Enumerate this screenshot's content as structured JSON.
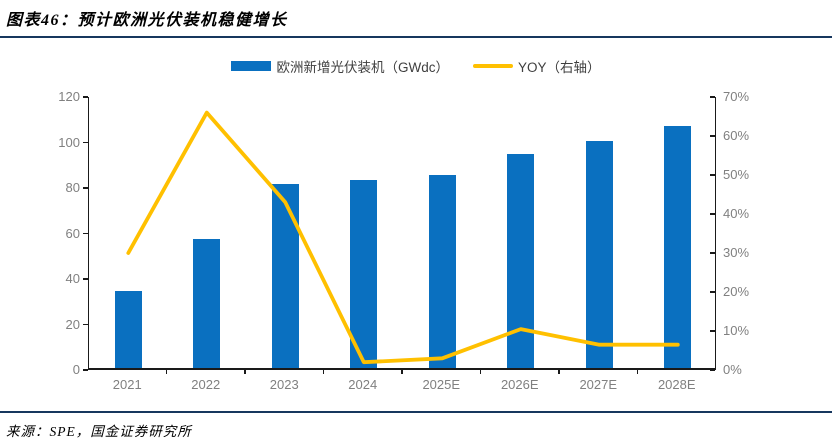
{
  "header": {
    "title": "图表46：预计欧洲光伏装机稳健增长"
  },
  "footer": {
    "source": "来源：SPE，国金证券研究所"
  },
  "colors": {
    "bar": "#0A70C0",
    "line": "#FFC000",
    "rule": "#17375E",
    "axis": "#1a1a1a",
    "axis_label": "#808080"
  },
  "legend": [
    {
      "label": "欧洲新增光伏装机（GWdc）",
      "type": "bar",
      "color": "#0A70C0"
    },
    {
      "label": "YOY（右轴）",
      "type": "line",
      "color": "#FFC000"
    }
  ],
  "chart_data": {
    "type": "bar",
    "title": "图表46：预计欧洲光伏装机稳健增长",
    "categories": [
      "2021",
      "2022",
      "2023",
      "2024",
      "2025E",
      "2026E",
      "2027E",
      "2028E"
    ],
    "series": [
      {
        "name": "欧洲新增光伏装机（GWdc）",
        "type": "bar",
        "axis": "left",
        "color": "#0A70C0",
        "values": [
          34,
          56.5,
          81,
          82.5,
          85,
          94,
          100,
          106.5
        ]
      },
      {
        "name": "YOY（右轴）",
        "type": "line",
        "axis": "right",
        "color": "#FFC000",
        "values_pct": [
          30,
          66,
          43,
          2,
          3,
          10.5,
          6.5,
          6.5
        ]
      }
    ],
    "left_axis": {
      "label": "",
      "min": 0,
      "max": 120,
      "step": 20,
      "ticks": [
        "0",
        "20",
        "40",
        "60",
        "80",
        "100",
        "120"
      ]
    },
    "right_axis": {
      "label": "",
      "min": 0,
      "max": 70,
      "step": 10,
      "ticks": [
        "0%",
        "10%",
        "20%",
        "30%",
        "40%",
        "50%",
        "60%",
        "70%"
      ]
    },
    "grid": false,
    "legend_position": "top-center"
  }
}
